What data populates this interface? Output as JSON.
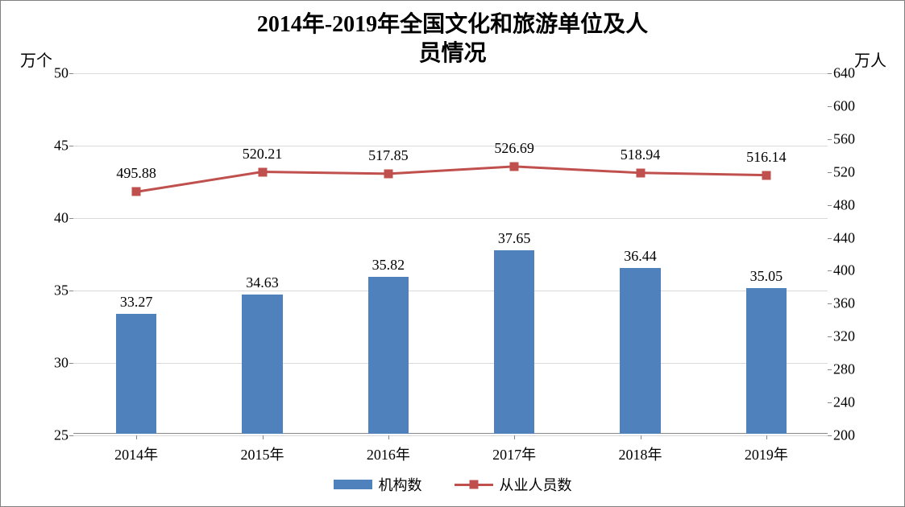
{
  "chart": {
    "type": "bar+line",
    "title_line1": "2014年-2019年全国文化和旅游单位及人",
    "title_line2": "员情况",
    "title_fontsize": 28,
    "title_fontweight": "bold",
    "background_color": "#ffffff",
    "border_color": "#808080",
    "grid_color": "#d9d9d9",
    "axis_color": "#888888",
    "text_color": "#000000",
    "label_fontsize": 18,
    "tick_fontsize": 18,
    "y_left": {
      "label": "万个",
      "min": 25,
      "max": 50,
      "step": 5,
      "ticks": [
        25,
        30,
        35,
        40,
        45,
        50
      ]
    },
    "y_right": {
      "label": "万人",
      "min": 200,
      "max": 640,
      "step": 40,
      "ticks": [
        200,
        240,
        280,
        320,
        360,
        400,
        440,
        480,
        520,
        560,
        600,
        640
      ]
    },
    "categories": [
      "2014年",
      "2015年",
      "2016年",
      "2017年",
      "2018年",
      "2019年"
    ],
    "bars": {
      "name": "机构数",
      "color": "#4f81bd",
      "width_ratio": 0.32,
      "values": [
        33.27,
        34.63,
        35.82,
        37.65,
        36.44,
        35.05
      ],
      "value_labels": [
        "33.27",
        "34.63",
        "35.82",
        "37.65",
        "36.44",
        "35.05"
      ]
    },
    "line": {
      "name": "从业人员数",
      "color": "#c0504d",
      "line_width": 3,
      "marker_size": 11,
      "marker_shape": "square",
      "values": [
        495.88,
        520.21,
        517.85,
        526.69,
        518.94,
        516.14
      ],
      "value_labels": [
        "495.88",
        "520.21",
        "517.85",
        "526.69",
        "518.94",
        "516.14"
      ]
    },
    "legend": {
      "items": [
        "机构数",
        "从业人员数"
      ]
    }
  }
}
